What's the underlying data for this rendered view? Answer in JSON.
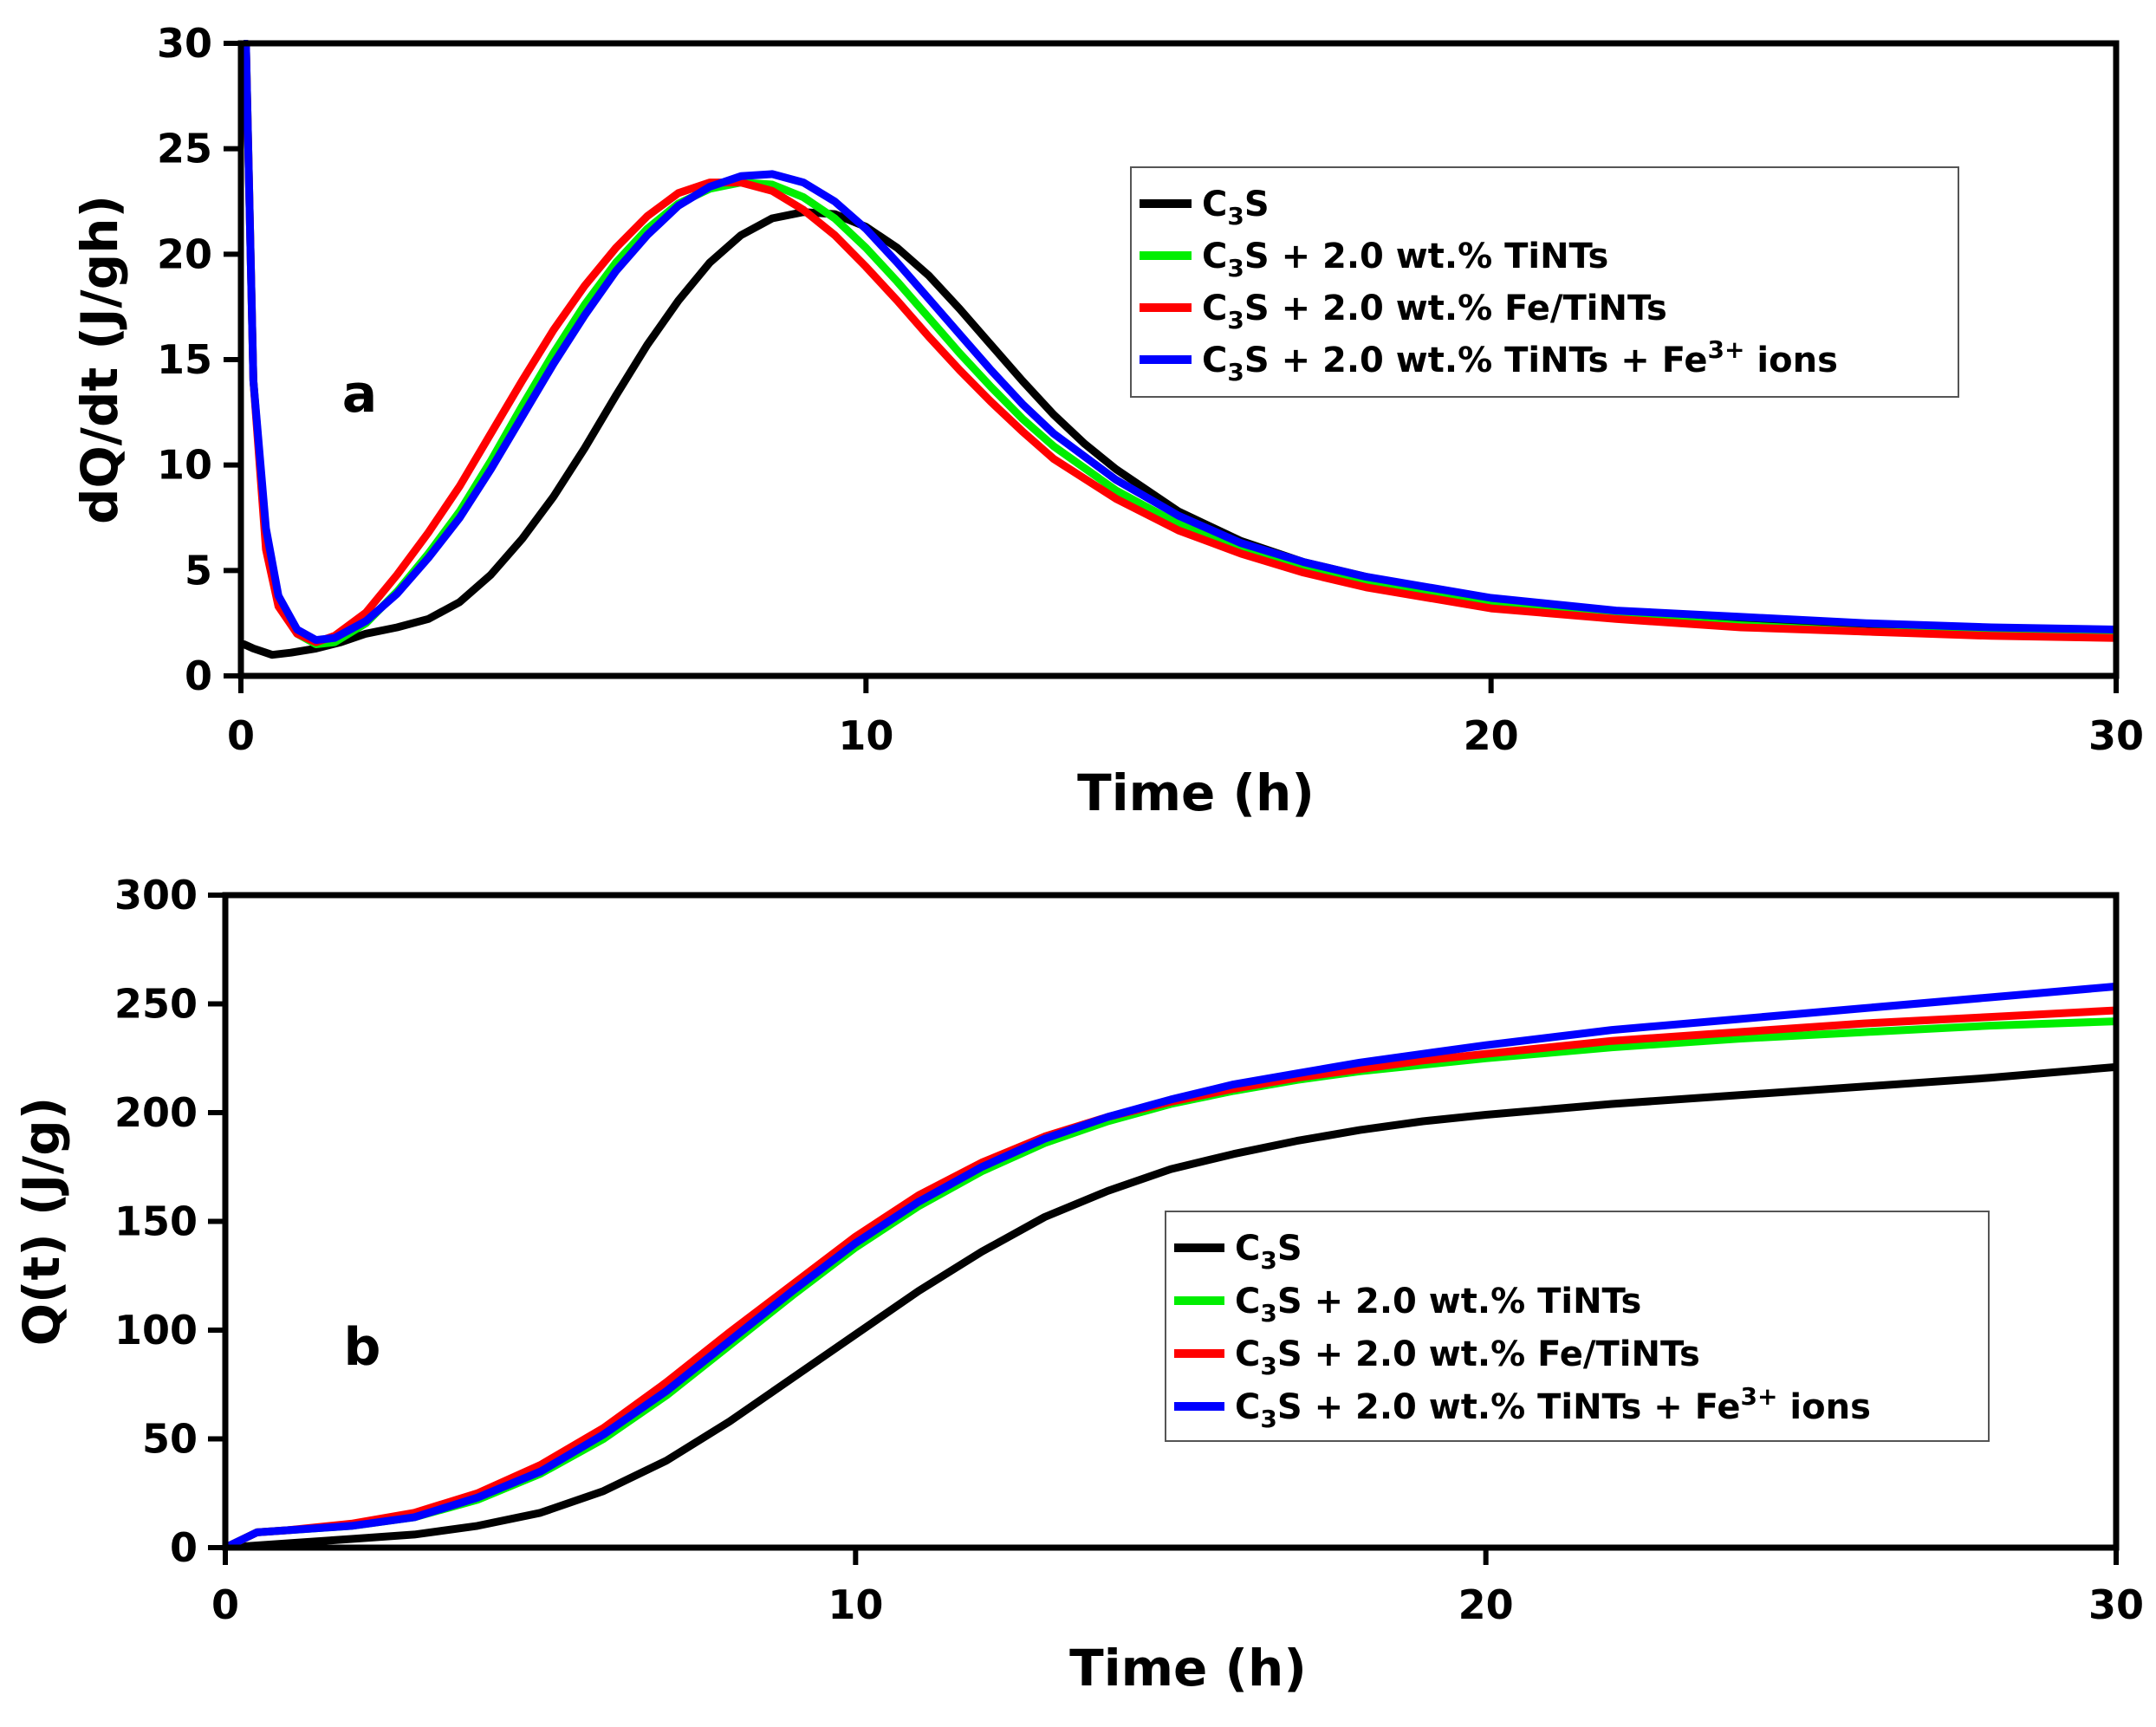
{
  "chart_data": [
    {
      "type": "line",
      "panel_label": "a",
      "xlabel": "Time (h)",
      "ylabel": "dQ/dt (J/gh)",
      "xlim": [
        0,
        30
      ],
      "ylim": [
        0,
        30
      ],
      "xticks": [
        0,
        10,
        20,
        30
      ],
      "yticks": [
        0,
        5,
        10,
        15,
        20,
        25,
        30
      ],
      "legend_position": "top-right",
      "series": [
        {
          "name": "C3S",
          "legend": [
            "C",
            "3",
            "S",
            "",
            ""
          ],
          "color": "#000000",
          "x": [
            0.05,
            0.2,
            0.5,
            0.8,
            1.2,
            1.6,
            2,
            2.5,
            3,
            3.5,
            4,
            4.5,
            5,
            5.5,
            6,
            6.5,
            7,
            7.5,
            8,
            8.5,
            9,
            9.5,
            10,
            10.5,
            11,
            11.5,
            12,
            12.5,
            13,
            13.5,
            14,
            15,
            16,
            17,
            18,
            19,
            20,
            22,
            24,
            26,
            28,
            30
          ],
          "y": [
            1.5,
            1.3,
            1.0,
            1.1,
            1.3,
            1.6,
            2.0,
            2.3,
            2.7,
            3.5,
            4.8,
            6.5,
            8.5,
            10.8,
            13.3,
            15.7,
            17.8,
            19.6,
            20.9,
            21.7,
            22.0,
            21.9,
            21.3,
            20.3,
            19.0,
            17.4,
            15.7,
            14.0,
            12.4,
            11.0,
            9.8,
            7.8,
            6.4,
            5.4,
            4.7,
            4.1,
            3.6,
            3.0,
            2.7,
            2.4,
            2.2,
            2.1
          ]
        },
        {
          "name": "C3S + 2.0 wt.% TiNTs",
          "legend": [
            "C",
            "3",
            "S + 2.0 wt.% TiNTs",
            "",
            ""
          ],
          "color": "#00ee00",
          "x": [
            0.08,
            0.2,
            0.4,
            0.6,
            0.9,
            1.2,
            1.5,
            2,
            2.5,
            3,
            3.5,
            4,
            4.5,
            5,
            5.5,
            6,
            6.5,
            7,
            7.5,
            8,
            8.5,
            9,
            9.5,
            10,
            10.5,
            11,
            11.5,
            12,
            12.5,
            13,
            14,
            15,
            16,
            17,
            18,
            20,
            22,
            24,
            26,
            28,
            30
          ],
          "y": [
            30,
            14,
            6.5,
            3.5,
            2.0,
            1.5,
            1.6,
            2.5,
            4.0,
            5.8,
            7.8,
            10.2,
            12.8,
            15.3,
            17.6,
            19.6,
            21.2,
            22.4,
            23.1,
            23.4,
            23.3,
            22.7,
            21.7,
            20.3,
            18.7,
            17.0,
            15.3,
            13.7,
            12.2,
            10.9,
            8.8,
            7.2,
            6.0,
            5.1,
            4.4,
            3.4,
            2.8,
            2.4,
            2.1,
            2.0,
            1.9
          ]
        },
        {
          "name": "C3S + 2.0 wt.% Fe/TiNTs",
          "legend": [
            "C",
            "3",
            "S + 2.0 wt.% Fe/TiNTs",
            "",
            ""
          ],
          "color": "#ff0000",
          "x": [
            0.08,
            0.2,
            0.4,
            0.6,
            0.9,
            1.2,
            1.5,
            2,
            2.5,
            3,
            3.5,
            4,
            4.5,
            5,
            5.5,
            6,
            6.5,
            7,
            7.5,
            8,
            8.5,
            9,
            9.5,
            10,
            10.5,
            11,
            11.5,
            12,
            12.5,
            13,
            14,
            15,
            16,
            17,
            18,
            20,
            22,
            24,
            26,
            28,
            30
          ],
          "y": [
            30,
            14,
            6.0,
            3.3,
            2.0,
            1.6,
            1.9,
            3.0,
            4.8,
            6.8,
            9.0,
            11.5,
            14.0,
            16.4,
            18.5,
            20.3,
            21.8,
            22.9,
            23.4,
            23.4,
            23.0,
            22.1,
            20.9,
            19.4,
            17.8,
            16.1,
            14.5,
            13.0,
            11.6,
            10.3,
            8.4,
            6.9,
            5.8,
            4.9,
            4.2,
            3.2,
            2.7,
            2.3,
            2.1,
            1.9,
            1.8
          ]
        },
        {
          "name": "C3S + 2.0 wt.% TiNTs + Fe3+ ions",
          "legend": [
            "C",
            "3",
            "S + 2.0 wt.% TiNTs + Fe",
            "3+",
            " ions"
          ],
          "color": "#0000ff",
          "x": [
            0.08,
            0.2,
            0.4,
            0.6,
            0.9,
            1.2,
            1.5,
            2,
            2.5,
            3,
            3.5,
            4,
            4.5,
            5,
            5.5,
            6,
            6.5,
            7,
            7.5,
            8,
            8.5,
            9,
            9.5,
            10,
            10.5,
            11,
            11.5,
            12,
            12.5,
            13,
            14,
            15,
            16,
            17,
            18,
            20,
            22,
            24,
            26,
            28,
            30
          ],
          "y": [
            30,
            14,
            7.0,
            3.8,
            2.2,
            1.7,
            1.8,
            2.6,
            3.9,
            5.6,
            7.5,
            9.8,
            12.3,
            14.8,
            17.1,
            19.2,
            20.9,
            22.3,
            23.2,
            23.7,
            23.8,
            23.4,
            22.5,
            21.2,
            19.6,
            17.9,
            16.2,
            14.5,
            12.9,
            11.5,
            9.3,
            7.6,
            6.3,
            5.4,
            4.7,
            3.7,
            3.1,
            2.8,
            2.5,
            2.3,
            2.2
          ]
        }
      ]
    },
    {
      "type": "line",
      "panel_label": "b",
      "xlabel": "Time (h)",
      "ylabel": "Q(t) (J/g)",
      "xlim": [
        0,
        30
      ],
      "ylim": [
        0,
        300
      ],
      "xticks": [
        0,
        10,
        20,
        30
      ],
      "yticks": [
        0,
        50,
        100,
        150,
        200,
        250,
        300
      ],
      "legend_position": "center-right",
      "series": [
        {
          "name": "C3S",
          "legend": [
            "C",
            "3",
            "S",
            "",
            ""
          ],
          "color": "#000000",
          "x": [
            0,
            1,
            2,
            3,
            4,
            5,
            6,
            7,
            8,
            9,
            10,
            11,
            12,
            13,
            14,
            15,
            16,
            17,
            18,
            19,
            20,
            22,
            24,
            26,
            28,
            30
          ],
          "y": [
            0,
            2,
            4,
            6,
            10,
            16,
            26,
            40,
            58,
            78,
            98,
            118,
            136,
            152,
            164,
            174,
            181,
            187,
            192,
            196,
            199,
            204,
            208,
            212,
            216,
            221
          ]
        },
        {
          "name": "C3S + 2.0 wt.% TiNTs",
          "legend": [
            "C",
            "3",
            "S + 2.0 wt.% TiNTs",
            "",
            ""
          ],
          "color": "#00ee00",
          "x": [
            0,
            0.5,
            1,
            2,
            3,
            4,
            5,
            6,
            7,
            8,
            9,
            10,
            11,
            12,
            13,
            14,
            15,
            16,
            17,
            18,
            19,
            20,
            22,
            24,
            26,
            28,
            30
          ],
          "y": [
            0,
            7,
            8,
            10,
            14,
            22,
            34,
            50,
            70,
            93,
            116,
            138,
            157,
            173,
            186,
            196,
            204,
            210,
            215,
            219,
            222,
            225,
            230,
            234,
            237,
            240,
            242
          ]
        },
        {
          "name": "C3S + 2.0 wt.% Fe/TiNTs",
          "legend": [
            "C",
            "3",
            "S + 2.0 wt.% Fe/TiNTs",
            "",
            ""
          ],
          "color": "#ff0000",
          "x": [
            0,
            0.5,
            1,
            2,
            3,
            4,
            5,
            6,
            7,
            8,
            9,
            10,
            11,
            12,
            13,
            14,
            15,
            16,
            17,
            18,
            19,
            20,
            22,
            24,
            26,
            28,
            30
          ],
          "y": [
            0,
            7,
            8,
            11,
            16,
            25,
            38,
            55,
            76,
            99,
            121,
            143,
            162,
            177,
            189,
            198,
            205,
            211,
            216,
            220,
            224,
            227,
            233,
            237,
            241,
            244,
            247
          ]
        },
        {
          "name": "C3S + 2.0 wt.% TiNTs + Fe3+ ions",
          "legend": [
            "C",
            "3",
            "S + 2.0 wt.% TiNTs + Fe",
            "3+",
            " ions"
          ],
          "color": "#0000ff",
          "x": [
            0,
            0.5,
            1,
            2,
            3,
            4,
            5,
            6,
            7,
            8,
            9,
            10,
            11,
            12,
            13,
            14,
            15,
            16,
            17,
            18,
            19,
            20,
            22,
            24,
            26,
            28,
            30
          ],
          "y": [
            0,
            7,
            8,
            10,
            14,
            23,
            35,
            52,
            72,
            95,
            118,
            140,
            159,
            175,
            188,
            198,
            206,
            213,
            218,
            223,
            227,
            231,
            238,
            243,
            248,
            253,
            258
          ]
        }
      ]
    }
  ]
}
